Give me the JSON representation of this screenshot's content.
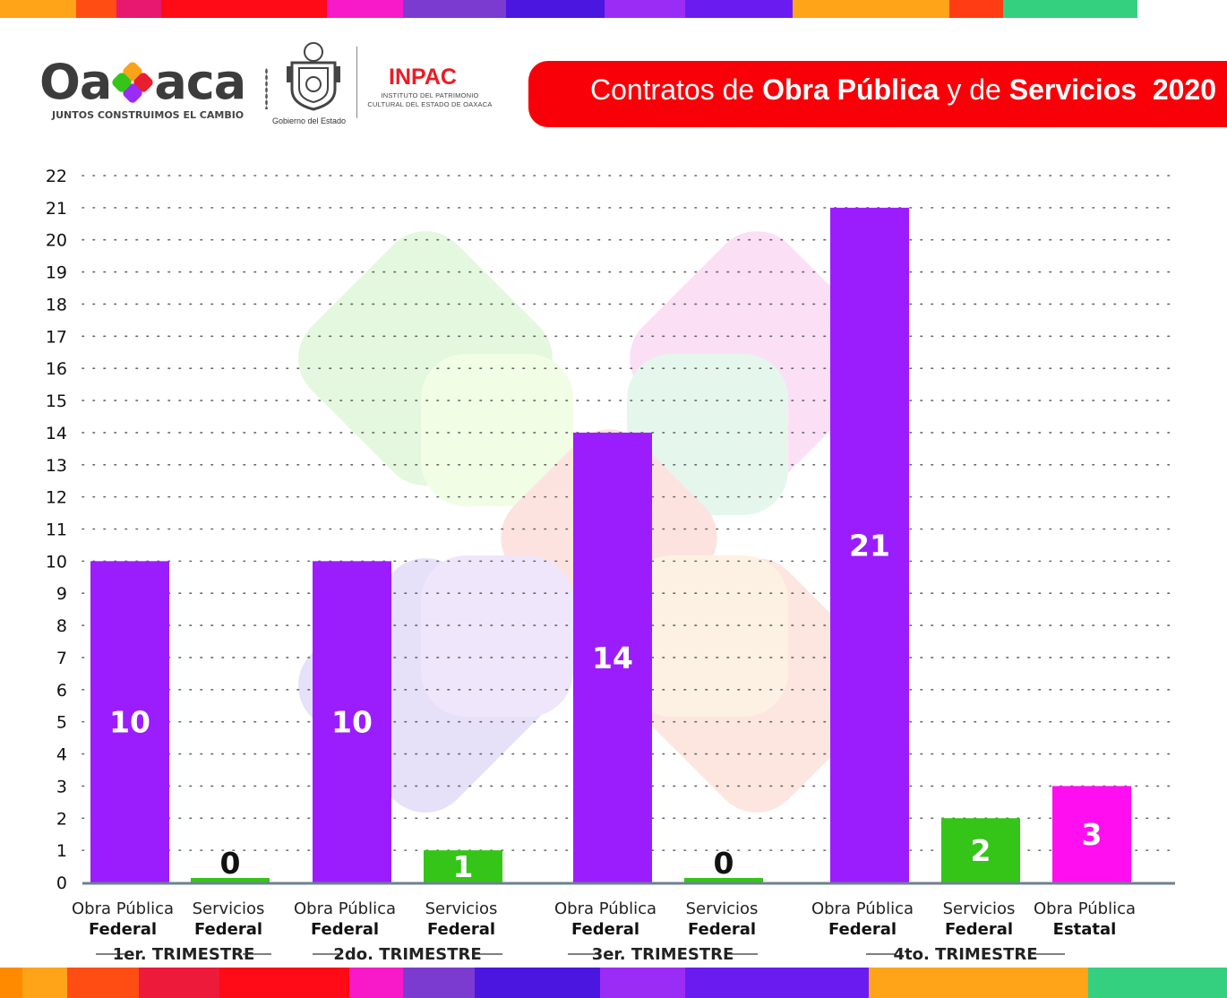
{
  "header": {
    "logo_prefix": "Oa",
    "logo_suffix": "aca",
    "logo_tagline": "JUNTOS CONSTRUIMOS EL CAMBIO",
    "seal_caption": "Gobierno del Estado",
    "inpac_title": "INPAC",
    "inpac_line1": "INSTITUTO DEL PATRIMONIO",
    "inpac_line2": "CULTURAL DEL ESTADO DE OAXACA",
    "banner_part1": "Contratos de ",
    "banner_bold1": "Obra Pública",
    "banner_part2": " y de ",
    "banner_bold2": "Servicios",
    "banner_year": "2020"
  },
  "colors": {
    "obra_federal": "#9b1dfd",
    "servicios_federal": "#34c518",
    "obra_estatal": "#ff0ff0",
    "banner": "#f90008",
    "axis": "#6d8090"
  },
  "chart_data": {
    "type": "bar",
    "ylim": [
      0,
      22
    ],
    "yticks": [
      0,
      1,
      2,
      3,
      4,
      5,
      6,
      7,
      8,
      9,
      10,
      11,
      12,
      13,
      14,
      15,
      16,
      17,
      18,
      19,
      20,
      21,
      22
    ],
    "grid": true,
    "bars": [
      {
        "line1": "Obra Pública",
        "line2": "Federal",
        "value": 10,
        "series": "obra_federal",
        "group": "1er. TRIMESTRE"
      },
      {
        "line1": "Servicios",
        "line2": "Federal",
        "value": 0,
        "series": "servicios_federal",
        "group": "1er. TRIMESTRE"
      },
      {
        "line1": "Obra Pública",
        "line2": "Federal",
        "value": 10,
        "series": "obra_federal",
        "group": "2do. TRIMESTRE"
      },
      {
        "line1": "Servicios",
        "line2": "Federal",
        "value": 1,
        "series": "servicios_federal",
        "group": "2do. TRIMESTRE"
      },
      {
        "line1": "Obra Pública",
        "line2": "Federal",
        "value": 14,
        "series": "obra_federal",
        "group": "3er. TRIMESTRE"
      },
      {
        "line1": "Servicios",
        "line2": "Federal",
        "value": 0,
        "series": "servicios_federal",
        "group": "3er. TRIMESTRE"
      },
      {
        "line1": "Obra Pública",
        "line2": "Federal",
        "value": 21,
        "series": "obra_federal",
        "group": "4to. TRIMESTRE"
      },
      {
        "line1": "Servicios",
        "line2": "Federal",
        "value": 2,
        "series": "servicios_federal",
        "group": "4to. TRIMESTRE"
      },
      {
        "line1": "Obra Pública",
        "line2": "Estatal",
        "value": 3,
        "series": "obra_estatal",
        "group": "4to. TRIMESTRE"
      }
    ],
    "groups": [
      "1er. TRIMESTRE",
      "2do. TRIMESTRE",
      "3er. TRIMESTRE",
      "4to. TRIMESTRE"
    ]
  }
}
